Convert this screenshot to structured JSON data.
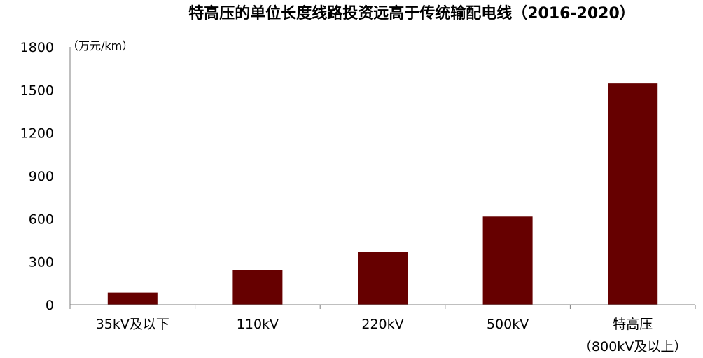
{
  "chart_data": {
    "type": "bar",
    "title": "特高压的单位长度线路投资远高于传统输配电线（2016-2020）",
    "unit_label": "（万元/km）",
    "categories": [
      {
        "label": "35kV及以下",
        "label_line2": ""
      },
      {
        "label": "110kV",
        "label_line2": ""
      },
      {
        "label": "220kV",
        "label_line2": ""
      },
      {
        "label": "500kV",
        "label_line2": ""
      },
      {
        "label": "特高压",
        "label_line2": "（800kV及以上）"
      }
    ],
    "values": [
      85,
      240,
      370,
      615,
      1545
    ],
    "ylim": [
      0,
      1800
    ],
    "yticks": [
      "0",
      "300",
      "600",
      "900",
      "1200",
      "1500",
      "1800"
    ],
    "bar_color": "#660000",
    "axis_color": "#7f7f7f",
    "grid": false,
    "legend": "none"
  }
}
